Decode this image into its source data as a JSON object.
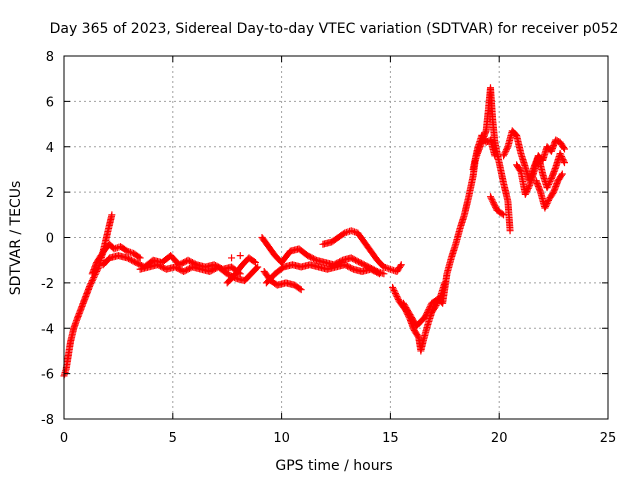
{
  "chart_data": {
    "type": "scatter",
    "title": "Day 365 of 2023, Sidereal Day-to-day VTEC variation (SDTVAR) for receiver p052",
    "xlabel": "GPS time / hours",
    "ylabel": "SDTVAR / TECUs",
    "xlim": [
      0,
      25
    ],
    "ylim": [
      -8,
      8
    ],
    "xticks": [
      "0",
      "5",
      "10",
      "15",
      "20",
      "25"
    ],
    "yticks": [
      "-8",
      "-6",
      "-4",
      "-2",
      "0",
      "2",
      "4",
      "6",
      "8"
    ],
    "grid": true,
    "marker": "+",
    "series": [
      {
        "name": "SDTVAR",
        "color": "#ff0000",
        "points": [
          [
            0.0,
            -6.1
          ],
          [
            0.1,
            -5.8
          ],
          [
            0.2,
            -5.2
          ],
          [
            0.3,
            -4.6
          ],
          [
            0.45,
            -4.0
          ],
          [
            0.6,
            -3.6
          ],
          [
            0.8,
            -3.1
          ],
          [
            1.0,
            -2.6
          ],
          [
            1.2,
            -2.1
          ],
          [
            1.4,
            -1.7
          ],
          [
            1.6,
            -1.3
          ],
          [
            1.8,
            -0.6
          ],
          [
            2.0,
            0.2
          ],
          [
            2.2,
            1.0
          ],
          [
            1.3,
            -1.6
          ],
          [
            1.5,
            -1.1
          ],
          [
            1.7,
            -0.8
          ],
          [
            1.9,
            -0.5
          ],
          [
            2.1,
            -0.3
          ],
          [
            2.3,
            -0.5
          ],
          [
            2.6,
            -0.4
          ],
          [
            2.9,
            -0.6
          ],
          [
            3.2,
            -0.7
          ],
          [
            3.5,
            -0.9
          ],
          [
            1.8,
            -1.2
          ],
          [
            2.1,
            -0.9
          ],
          [
            2.5,
            -0.8
          ],
          [
            2.9,
            -0.9
          ],
          [
            3.3,
            -1.1
          ],
          [
            3.7,
            -1.3
          ],
          [
            4.1,
            -1.0
          ],
          [
            4.5,
            -1.1
          ],
          [
            4.9,
            -0.8
          ],
          [
            5.3,
            -1.2
          ],
          [
            5.7,
            -1.0
          ],
          [
            6.1,
            -1.2
          ],
          [
            6.5,
            -1.3
          ],
          [
            6.9,
            -1.2
          ],
          [
            7.3,
            -1.4
          ],
          [
            7.7,
            -1.3
          ],
          [
            8.1,
            -1.6
          ],
          [
            3.5,
            -1.4
          ],
          [
            3.9,
            -1.3
          ],
          [
            4.3,
            -1.2
          ],
          [
            4.7,
            -1.4
          ],
          [
            5.1,
            -1.3
          ],
          [
            5.5,
            -1.5
          ],
          [
            5.9,
            -1.3
          ],
          [
            6.3,
            -1.4
          ],
          [
            6.7,
            -1.5
          ],
          [
            7.1,
            -1.3
          ],
          [
            7.5,
            -1.6
          ],
          [
            7.9,
            -1.8
          ],
          [
            8.3,
            -1.9
          ],
          [
            8.7,
            -1.5
          ],
          [
            8.9,
            -1.3
          ],
          [
            7.5,
            -2.0
          ],
          [
            7.8,
            -1.7
          ],
          [
            8.2,
            -1.2
          ],
          [
            8.5,
            -0.9
          ],
          [
            8.8,
            -1.1
          ],
          [
            8.1,
            -0.8
          ],
          [
            7.7,
            -0.9
          ],
          [
            9.1,
            0.0
          ],
          [
            9.4,
            -0.4
          ],
          [
            9.7,
            -0.8
          ],
          [
            10.0,
            -1.1
          ],
          [
            10.4,
            -0.6
          ],
          [
            10.8,
            -0.5
          ],
          [
            11.2,
            -0.8
          ],
          [
            11.6,
            -1.0
          ],
          [
            12.0,
            -1.1
          ],
          [
            12.4,
            -1.2
          ],
          [
            12.8,
            -1.0
          ],
          [
            13.2,
            -0.9
          ],
          [
            13.6,
            -1.1
          ],
          [
            14.0,
            -1.3
          ],
          [
            14.4,
            -1.5
          ],
          [
            14.7,
            -1.6
          ],
          [
            9.2,
            -1.5
          ],
          [
            9.5,
            -1.9
          ],
          [
            9.8,
            -2.1
          ],
          [
            10.2,
            -2.0
          ],
          [
            10.6,
            -2.1
          ],
          [
            10.9,
            -2.3
          ],
          [
            9.3,
            -2.0
          ],
          [
            9.7,
            -1.6
          ],
          [
            10.1,
            -1.3
          ],
          [
            10.5,
            -1.2
          ],
          [
            10.9,
            -1.3
          ],
          [
            11.3,
            -1.2
          ],
          [
            11.7,
            -1.3
          ],
          [
            12.1,
            -1.4
          ],
          [
            12.5,
            -1.3
          ],
          [
            12.9,
            -1.2
          ],
          [
            13.3,
            -1.4
          ],
          [
            13.7,
            -1.5
          ],
          [
            14.1,
            -1.4
          ],
          [
            14.5,
            -1.6
          ],
          [
            11.9,
            -0.3
          ],
          [
            12.3,
            -0.2
          ],
          [
            12.6,
            0.0
          ],
          [
            12.9,
            0.2
          ],
          [
            13.2,
            0.3
          ],
          [
            13.5,
            0.2
          ],
          [
            13.8,
            -0.2
          ],
          [
            14.1,
            -0.6
          ],
          [
            14.4,
            -1.0
          ],
          [
            14.7,
            -1.3
          ],
          [
            15.0,
            -1.4
          ],
          [
            15.3,
            -1.5
          ],
          [
            15.5,
            -1.2
          ],
          [
            15.1,
            -2.2
          ],
          [
            15.4,
            -2.8
          ],
          [
            15.7,
            -3.2
          ],
          [
            15.9,
            -3.6
          ],
          [
            16.1,
            -4.1
          ],
          [
            16.3,
            -4.4
          ],
          [
            16.4,
            -5.0
          ],
          [
            16.5,
            -4.6
          ],
          [
            16.7,
            -3.9
          ],
          [
            16.9,
            -3.3
          ],
          [
            17.1,
            -3.0
          ],
          [
            17.3,
            -2.6
          ],
          [
            17.5,
            -2.0
          ],
          [
            15.6,
            -2.9
          ],
          [
            15.9,
            -3.4
          ],
          [
            16.2,
            -3.9
          ],
          [
            16.6,
            -3.5
          ],
          [
            16.9,
            -2.9
          ],
          [
            17.2,
            -2.7
          ],
          [
            17.4,
            -2.9
          ],
          [
            17.6,
            -1.6
          ],
          [
            17.8,
            -0.9
          ],
          [
            18.0,
            -0.3
          ],
          [
            18.2,
            0.4
          ],
          [
            18.4,
            1.0
          ],
          [
            18.6,
            1.8
          ],
          [
            18.8,
            2.7
          ],
          [
            18.9,
            3.4
          ],
          [
            19.0,
            3.7
          ],
          [
            19.2,
            4.2
          ],
          [
            19.4,
            4.7
          ],
          [
            19.5,
            5.6
          ],
          [
            19.6,
            6.6
          ],
          [
            19.7,
            5.2
          ],
          [
            19.8,
            4.2
          ],
          [
            20.0,
            3.3
          ],
          [
            20.2,
            2.4
          ],
          [
            20.4,
            1.6
          ],
          [
            20.5,
            0.3
          ],
          [
            18.8,
            3.0
          ],
          [
            19.0,
            3.9
          ],
          [
            19.2,
            4.5
          ],
          [
            19.4,
            4.2
          ],
          [
            19.6,
            4.3
          ],
          [
            19.8,
            3.6
          ],
          [
            19.6,
            1.8
          ],
          [
            19.9,
            1.2
          ],
          [
            20.2,
            1.0
          ],
          [
            20.2,
            3.6
          ],
          [
            20.4,
            4.0
          ],
          [
            20.6,
            4.7
          ],
          [
            20.8,
            4.5
          ],
          [
            21.0,
            3.7
          ],
          [
            21.2,
            3.1
          ],
          [
            21.4,
            2.5
          ],
          [
            21.6,
            3.1
          ],
          [
            21.8,
            3.6
          ],
          [
            22.0,
            2.8
          ],
          [
            22.2,
            2.2
          ],
          [
            22.4,
            2.6
          ],
          [
            22.6,
            3.1
          ],
          [
            22.8,
            3.7
          ],
          [
            23.0,
            3.3
          ],
          [
            20.8,
            3.2
          ],
          [
            21.0,
            2.9
          ],
          [
            21.2,
            1.9
          ],
          [
            21.4,
            2.3
          ],
          [
            21.6,
            2.9
          ],
          [
            21.8,
            3.6
          ],
          [
            22.0,
            3.4
          ],
          [
            22.2,
            4.0
          ],
          [
            22.4,
            3.8
          ],
          [
            22.6,
            4.3
          ],
          [
            22.8,
            4.2
          ],
          [
            23.0,
            3.9
          ],
          [
            21.7,
            2.5
          ],
          [
            21.9,
            2.0
          ],
          [
            22.1,
            1.3
          ],
          [
            22.3,
            1.7
          ],
          [
            22.5,
            2.0
          ],
          [
            22.7,
            2.5
          ],
          [
            22.9,
            2.8
          ]
        ]
      }
    ]
  }
}
